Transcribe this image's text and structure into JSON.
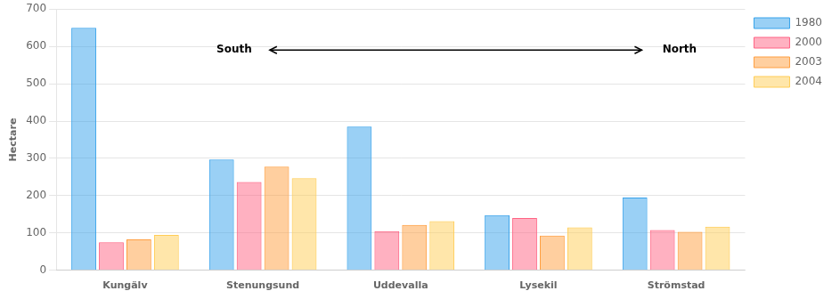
{
  "chart_data": {
    "type": "bar",
    "categories": [
      "Kungälv",
      "Stenungsund",
      "Uddevalla",
      "Lysekil",
      "Strömstad"
    ],
    "series": [
      {
        "name": "1980",
        "values": [
          650,
          297,
          385,
          148,
          195
        ]
      },
      {
        "name": "2000",
        "values": [
          75,
          237,
          105,
          140,
          108
        ]
      },
      {
        "name": "2003",
        "values": [
          83,
          278,
          122,
          93,
          103
        ]
      },
      {
        "name": "2004",
        "values": [
          95,
          247,
          132,
          115,
          117
        ]
      }
    ],
    "ylabel": "Hectare",
    "ylim": [
      0,
      700
    ],
    "yticks": [
      0,
      100,
      200,
      300,
      400,
      500,
      600,
      700
    ],
    "grid": "y",
    "legend": "right",
    "annotations": [
      "South",
      "North"
    ]
  }
}
